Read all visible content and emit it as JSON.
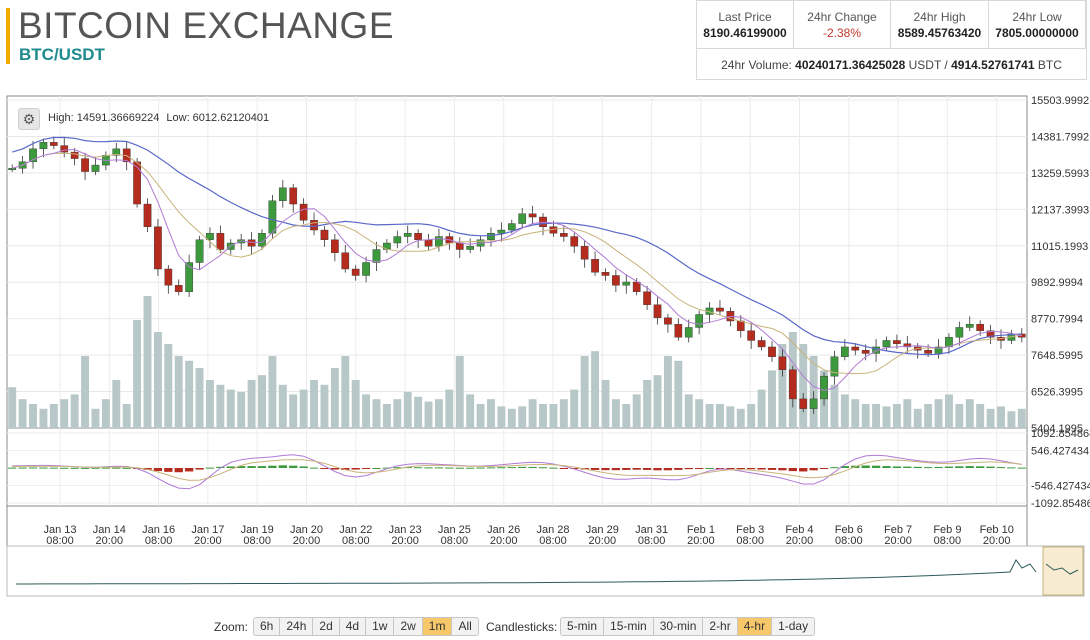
{
  "header": {
    "title": "BITCOIN EXCHANGE",
    "pair": "BTC/USDT",
    "accent_color": "#f2a900"
  },
  "stats": [
    {
      "label": "Last Price",
      "value": "8190.46199000"
    },
    {
      "label": "24hr Change",
      "value": "-2.38%"
    },
    {
      "label": "24hr High",
      "value": "8589.45763420"
    },
    {
      "label": "24hr Low",
      "value": "7805.00000000"
    }
  ],
  "volume": {
    "label": "24hr Volume:",
    "usdt": "40240171.36425028",
    "usdt_unit": "USDT /",
    "btc": "4914.52761741",
    "btc_unit": "BTC"
  },
  "chart": {
    "settings_icon": "gear-icon",
    "high_label": "High: 14591.36669224",
    "low_label": "Low: 6012.62120401"
  },
  "controls": {
    "zoom_label": "Zoom:",
    "zoom_options": [
      "6h",
      "24h",
      "2d",
      "4d",
      "1w",
      "2w",
      "1m",
      "All"
    ],
    "zoom_active": "1m",
    "candle_label": "Candlesticks:",
    "candle_options": [
      "5-min",
      "15-min",
      "30-min",
      "2-hr",
      "4-hr",
      "1-day"
    ],
    "candle_active": "4-hr"
  },
  "chart_data": {
    "type": "candlestick",
    "price_axis_ticks": [
      "15503.9992",
      "14381.7992",
      "13259.5993",
      "12137.3993",
      "11015.1993",
      "9892.9994",
      "8770.7994",
      "7648.5995",
      "6526.3995",
      "5404.1995"
    ],
    "price_range": [
      5404.1995,
      15503.9992
    ],
    "macd_axis_ticks": [
      "1092.854868",
      "546.427434",
      "-546.427434",
      "-1092.85486"
    ],
    "macd_range": [
      -1092.85486,
      1092.854868
    ],
    "time_ticks": [
      {
        "date": "Jan 13",
        "time": "08:00"
      },
      {
        "date": "Jan 14",
        "time": "20:00"
      },
      {
        "date": "Jan 16",
        "time": "08:00"
      },
      {
        "date": "Jan 17",
        "time": "20:00"
      },
      {
        "date": "Jan 19",
        "time": "08:00"
      },
      {
        "date": "Jan 20",
        "time": "20:00"
      },
      {
        "date": "Jan 22",
        "time": "08:00"
      },
      {
        "date": "Jan 23",
        "time": "20:00"
      },
      {
        "date": "Jan 25",
        "time": "08:00"
      },
      {
        "date": "Jan 26",
        "time": "20:00"
      },
      {
        "date": "Jan 28",
        "time": "08:00"
      },
      {
        "date": "Jan 29",
        "time": "20:00"
      },
      {
        "date": "Jan 31",
        "time": "08:00"
      },
      {
        "date": "Feb 1",
        "time": "20:00"
      },
      {
        "date": "Feb 3",
        "time": "08:00"
      },
      {
        "date": "Feb 4",
        "time": "20:00"
      },
      {
        "date": "Feb 6",
        "time": "08:00"
      },
      {
        "date": "Feb 7",
        "time": "20:00"
      },
      {
        "date": "Feb 9",
        "time": "08:00"
      },
      {
        "date": "Feb 10",
        "time": "20:00"
      }
    ],
    "price_trend": [
      13400,
      13600,
      14000,
      14200,
      14100,
      13900,
      13700,
      13300,
      13500,
      13800,
      14000,
      13600,
      12300,
      11600,
      10300,
      9800,
      9600,
      10500,
      11200,
      11400,
      10900,
      11100,
      11200,
      11000,
      11400,
      12400,
      12800,
      12300,
      11800,
      11500,
      11200,
      10800,
      10300,
      10100,
      10500,
      10900,
      11100,
      11300,
      11400,
      11200,
      11000,
      11300,
      11100,
      10900,
      11000,
      11200,
      11400,
      11500,
      11700,
      12000,
      11900,
      11600,
      11400,
      11300,
      11000,
      10600,
      10200,
      10100,
      9800,
      9900,
      9600,
      9200,
      8800,
      8600,
      8200,
      8500,
      8900,
      9100,
      9000,
      8700,
      8400,
      8100,
      7900,
      7600,
      7200,
      6300,
      6000,
      6300,
      7000,
      7600,
      7900,
      7800,
      7700,
      7900,
      8100,
      8000,
      7900,
      7800,
      7700,
      7900,
      8200,
      8500,
      8600,
      8400,
      8200,
      8100,
      8300,
      8200
    ],
    "volume_trend": [
      0.17,
      0.12,
      0.1,
      0.08,
      0.1,
      0.12,
      0.14,
      0.3,
      0.08,
      0.12,
      0.2,
      0.1,
      0.45,
      0.55,
      0.4,
      0.35,
      0.3,
      0.28,
      0.25,
      0.2,
      0.18,
      0.16,
      0.15,
      0.2,
      0.22,
      0.3,
      0.18,
      0.14,
      0.16,
      0.2,
      0.18,
      0.25,
      0.3,
      0.2,
      0.14,
      0.12,
      0.1,
      0.12,
      0.15,
      0.13,
      0.11,
      0.12,
      0.16,
      0.3,
      0.14,
      0.1,
      0.12,
      0.09,
      0.08,
      0.09,
      0.12,
      0.1,
      0.1,
      0.12,
      0.16,
      0.3,
      0.32,
      0.2,
      0.12,
      0.1,
      0.14,
      0.2,
      0.22,
      0.3,
      0.28,
      0.14,
      0.12,
      0.1,
      0.1,
      0.09,
      0.08,
      0.1,
      0.16,
      0.24,
      0.35,
      0.4,
      0.35,
      0.3,
      0.24,
      0.18,
      0.14,
      0.12,
      0.1,
      0.1,
      0.09,
      0.1,
      0.12,
      0.08,
      0.1,
      0.12,
      0.14,
      0.1,
      0.12,
      0.1,
      0.08,
      0.09,
      0.07,
      0.08
    ],
    "macd_trend": [
      0.05,
      0.06,
      0.07,
      0.06,
      0.05,
      0.03,
      0.02,
      0.01,
      0.03,
      0.05,
      0.04,
      0.02,
      -0.1,
      -0.25,
      -0.4,
      -0.5,
      -0.55,
      -0.45,
      -0.2,
      0.05,
      0.15,
      0.2,
      0.25,
      0.25,
      0.25,
      0.3,
      0.35,
      0.3,
      0.2,
      0.05,
      -0.1,
      -0.2,
      -0.25,
      -0.2,
      -0.1,
      0.0,
      0.05,
      0.1,
      0.12,
      0.1,
      0.08,
      0.08,
      0.06,
      0.04,
      0.04,
      0.06,
      0.08,
      0.1,
      0.12,
      0.15,
      0.14,
      0.1,
      0.05,
      -0.02,
      -0.1,
      -0.2,
      -0.25,
      -0.28,
      -0.28,
      -0.25,
      -0.22,
      -0.25,
      -0.3,
      -0.3,
      -0.25,
      -0.15,
      -0.05,
      0.0,
      -0.02,
      -0.08,
      -0.12,
      -0.15,
      -0.2,
      -0.25,
      -0.3,
      -0.4,
      -0.45,
      -0.3,
      -0.1,
      0.1,
      0.25,
      0.3,
      0.32,
      0.3,
      0.25,
      0.2,
      0.18,
      0.15,
      0.12,
      0.14,
      0.18,
      0.22,
      0.25,
      0.22,
      0.18,
      0.12,
      0.08,
      0.05
    ],
    "colors": {
      "up": "#3c9a3c",
      "down": "#b52b1d",
      "volume": "#b8c7c7",
      "ma_blue": "#5a68c9",
      "ma_tan": "#c9b37a",
      "ma_purple": "#b07ad6",
      "navigator_line": "#2f5a5a"
    },
    "grid": true
  }
}
